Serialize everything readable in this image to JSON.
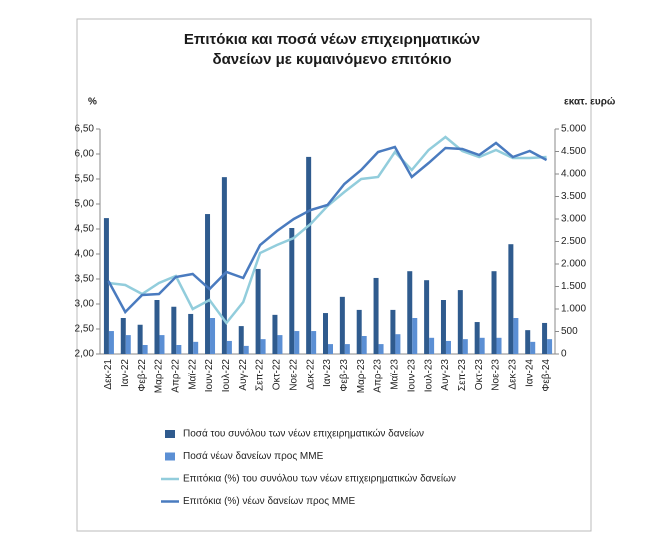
{
  "chart_data": {
    "type": "bar-line",
    "title": "Επιτόκια και ποσά νέων επιχειρηματικών δανείων με κυμαινόμενο επιτόκιο",
    "y_label": "%",
    "y2_label": "εκατ. ευρώ",
    "categories": [
      "Δεκ-21",
      "Ιαν-22",
      "Φεβ-22",
      "Μαρ-22",
      "Απρ-22",
      "Μαϊ-22",
      "Ιουν-22",
      "Ιουλ-22",
      "Αυγ-22",
      "Σεπ-22",
      "Οκτ-22",
      "Νοε-22",
      "Δεκ-22",
      "Ιαν-23",
      "Φεβ-23",
      "Μαρ-23",
      "Απρ-23",
      "Μαϊ-23",
      "Ιουν-23",
      "Ιουλ-23",
      "Αυγ-23",
      "Σεπ-23",
      "Οκτ-23",
      "Νοε-23",
      "Δεκ-23",
      "Ιαν-24",
      "Φεβ-24"
    ],
    "ylim": [
      2,
      6.5
    ],
    "yticks": [
      {
        "value": 2,
        "label": "2,00"
      },
      {
        "value": 2.5,
        "label": "2,50"
      },
      {
        "value": 3,
        "label": "3,00"
      },
      {
        "value": 3.5,
        "label": "3,50"
      },
      {
        "value": 4,
        "label": "4,00"
      },
      {
        "value": 4.5,
        "label": "4,50"
      },
      {
        "value": 5,
        "label": "5,00"
      },
      {
        "value": 5.5,
        "label": "5,50"
      },
      {
        "value": 6,
        "label": "6,00"
      },
      {
        "value": 6.5,
        "label": "6,50"
      }
    ],
    "y2lim": [
      0,
      5000
    ],
    "y2ticks": [
      0,
      500,
      {
        "value": 1000,
        "label": "1.000"
      },
      {
        "value": 1500,
        "label": "1.500"
      },
      {
        "value": 2000,
        "label": "2.000"
      },
      {
        "value": 2500,
        "label": "2.500"
      },
      {
        "value": 3000,
        "label": "3.000"
      },
      {
        "value": 3500,
        "label": "3.500"
      },
      {
        "value": 4000,
        "label": "4.000"
      },
      {
        "value": 4500,
        "label": "4.500"
      },
      {
        "value": 5000,
        "label": "5.000"
      }
    ],
    "grid": false,
    "series": [
      {
        "name": "Ποσά του συνόλου των νέων επιχειρηματικών δανείων",
        "kind": "bar",
        "axis": "y2",
        "color": "#2f5b8e",
        "values": [
          3020,
          800,
          650,
          1200,
          1050,
          890,
          3110,
          3930,
          620,
          1890,
          870,
          2800,
          4380,
          910,
          1270,
          980,
          1690,
          980,
          1840,
          1640,
          1200,
          1420,
          710,
          1840,
          2440,
          530,
          690
        ]
      },
      {
        "name": "Ποσά νέων δανείων προς ΜΜΕ",
        "kind": "bar",
        "axis": "y2",
        "color": "#5b8fd4",
        "values": [
          510,
          420,
          200,
          420,
          200,
          270,
          800,
          290,
          180,
          330,
          420,
          510,
          510,
          220,
          220,
          400,
          220,
          440,
          800,
          360,
          290,
          330,
          360,
          360,
          800,
          270,
          330
        ]
      },
      {
        "name": "Επιτόκια (%) του συνόλου των νέων επιχειρηματικών δανείων",
        "kind": "line",
        "color": "#92cddc",
        "values": [
          3.42,
          3.38,
          3.2,
          3.42,
          3.56,
          2.9,
          3.08,
          2.62,
          3.04,
          4.02,
          4.18,
          4.32,
          4.6,
          4.96,
          5.24,
          5.5,
          5.54,
          6.04,
          5.68,
          6.08,
          6.34,
          6.06,
          5.94,
          6.08,
          5.92,
          5.92,
          5.94
        ]
      },
      {
        "name": "Επιτόκια (%) νέων δανείων προς ΜΜΕ",
        "kind": "line",
        "color": "#4a7bbf",
        "values": [
          3.46,
          2.84,
          3.18,
          3.2,
          3.54,
          3.6,
          3.3,
          3.64,
          3.52,
          4.18,
          4.46,
          4.7,
          4.88,
          4.98,
          5.4,
          5.68,
          6.04,
          6.14,
          5.54,
          5.82,
          6.12,
          6.1,
          5.98,
          6.22,
          5.94,
          6.06,
          5.88
        ]
      }
    ]
  }
}
